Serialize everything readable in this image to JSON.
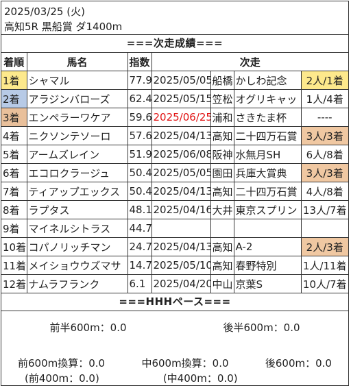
{
  "header": {
    "date": "2025/03/25 (火)",
    "race": "高知5R 黒船賞 ダ1400m"
  },
  "results_section_title": "===次走成績===",
  "columns": {
    "rank": "着順",
    "horse": "馬名",
    "index": "指数",
    "next": "次走"
  },
  "colors": {
    "gold": "#fde98c",
    "silver": "#b7cae6",
    "bronze": "#e9c09b",
    "placed": "#f0c8a2",
    "red_date": "#e11111"
  },
  "rows": [
    {
      "rank": "1着",
      "horse": "シャマル",
      "index": "77.9",
      "date": "2025/05/05",
      "venue": "船橋",
      "race": "かしわ記念",
      "result": "2人/1着",
      "rank_color": "gold",
      "result_color": "gold",
      "date_red": false
    },
    {
      "rank": "2着",
      "horse": "アラジンバローズ",
      "index": "62.4",
      "date": "2025/05/15",
      "venue": "笠松",
      "race": "オグリキャッ",
      "result": "1人/4着",
      "rank_color": "silver",
      "result_color": "",
      "date_red": false
    },
    {
      "rank": "3着",
      "horse": "エンペラーワケア",
      "index": "59.6",
      "date": "2025/06/25",
      "venue": "浦和",
      "race": "さきたま杯",
      "result": "----",
      "rank_color": "bronze",
      "result_color": "",
      "date_red": true
    },
    {
      "rank": "4着",
      "horse": "ニクソンテソーロ",
      "index": "57.6",
      "date": "2025/04/13",
      "venue": "高知",
      "race": "二十四万石賞",
      "result": "3人/3着",
      "rank_color": "",
      "result_color": "placed",
      "date_red": false
    },
    {
      "rank": "5着",
      "horse": "アームズレイン",
      "index": "51.9",
      "date": "2025/06/08",
      "venue": "阪神",
      "race": "水無月SH",
      "result": "6人/8着",
      "rank_color": "",
      "result_color": "",
      "date_red": false
    },
    {
      "rank": "6着",
      "horse": "エコロクラージュ",
      "index": "50.4",
      "date": "2025/05/05",
      "venue": "園田",
      "race": "兵庫大賞典",
      "result": "3人/3着",
      "rank_color": "",
      "result_color": "placed",
      "date_red": false
    },
    {
      "rank": "7着",
      "horse": "ティアップエックス",
      "index": "50.4",
      "date": "2025/04/13",
      "venue": "高知",
      "race": "二十四万石賞",
      "result": "4人/8着",
      "rank_color": "",
      "result_color": "",
      "date_red": false
    },
    {
      "rank": "8着",
      "horse": "ラプタス",
      "index": "48.1",
      "date": "2025/04/16",
      "venue": "大井",
      "race": "東京スプリン",
      "result": "13人/7着",
      "rank_color": "",
      "result_color": "",
      "date_red": false
    },
    {
      "rank": "9着",
      "horse": "マイネルシトラス",
      "index": "44.7",
      "date": "",
      "venue": "",
      "race": "",
      "result": "",
      "rank_color": "",
      "result_color": "",
      "date_red": false
    },
    {
      "rank": "10着",
      "horse": "コパノリッチマン",
      "index": "24.7",
      "date": "2025/04/13",
      "venue": "高知",
      "race": "A-2",
      "result": "2人/3着",
      "rank_color": "",
      "result_color": "placed",
      "date_red": false
    },
    {
      "rank": "11着",
      "horse": "メイショウウズマサ",
      "index": "14.7",
      "date": "2025/05/10",
      "venue": "高知",
      "race": "春野特別",
      "result": "1人/11着",
      "rank_color": "",
      "result_color": "",
      "date_red": false
    },
    {
      "rank": "12着",
      "horse": "ナムラフランク",
      "index": "6.1",
      "date": "2025/04/20",
      "venue": "中山",
      "race": "京葉S",
      "result": "10人/7着",
      "rank_color": "",
      "result_color": "",
      "date_red": false
    }
  ],
  "pace_section_title": "===HHHペース===",
  "pace": {
    "first_half": "前半600m：0.0",
    "second_half": "後半600m：0.0",
    "front600": "前600m換算：0.0",
    "mid600": "中600m換算：0.0",
    "back600": "後600m：0.0",
    "front400": "(前400m：0.0)",
    "mid400": "(中400m：0.0)"
  }
}
